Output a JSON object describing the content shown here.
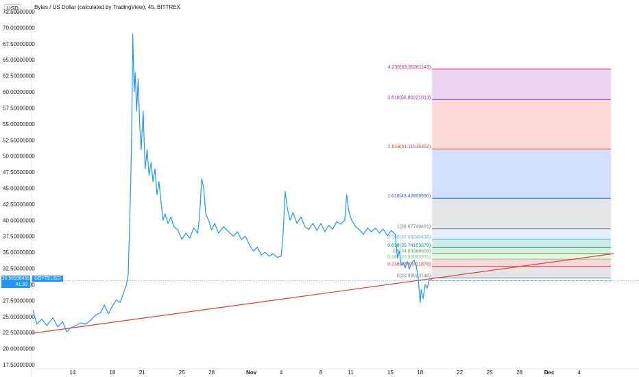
{
  "header": {
    "title": "Bytes / US Dollar (calculated by TradingView), 45, BITTREX",
    "currency": "USD"
  },
  "badges": {
    "last_price": "30.56598455",
    "countdown": "41:30",
    "symbol": "GBYTEUSD"
  },
  "colors": {
    "price_line": "#2196f3",
    "trend_line": "#e53935",
    "badge": "#2196f3"
  },
  "chart_data": {
    "type": "line",
    "title": "Bytes / US Dollar (calculated by TradingView), 45, BITTREX",
    "ylabel": "USD",
    "ylim": [
      17.5,
      72.5
    ],
    "y_ticks": [
      "72.50000000",
      "70.00000000",
      "67.50000000",
      "65.00000000",
      "62.50000000",
      "60.00000000",
      "57.50000000",
      "55.00000000",
      "52.50000000",
      "50.00000000",
      "47.50000000",
      "45.00000000",
      "42.50000000",
      "40.00000000",
      "37.50000000",
      "35.00000000",
      "32.50000000",
      "30.00000000",
      "27.50000000",
      "25.00000000",
      "22.50000000",
      "20.00000000",
      "17.50000000"
    ],
    "x_ticks": [
      {
        "label": "14",
        "day": 14
      },
      {
        "label": "18",
        "day": 18
      },
      {
        "label": "21",
        "day": 21
      },
      {
        "label": "25",
        "day": 25
      },
      {
        "label": "28",
        "day": 28
      },
      {
        "label": "Nov",
        "day": 32
      },
      {
        "label": "4",
        "day": 35
      },
      {
        "label": "8",
        "day": 39
      },
      {
        "label": "11",
        "day": 42
      },
      {
        "label": "15",
        "day": 46
      },
      {
        "label": "18",
        "day": 49
      },
      {
        "label": "22",
        "day": 53
      },
      {
        "label": "25",
        "day": 56
      },
      {
        "label": "28",
        "day": 59
      },
      {
        "label": "Dec",
        "day": 62
      },
      {
        "label": "4",
        "day": 65
      }
    ],
    "series": [
      {
        "points": [
          [
            10,
            26.0
          ],
          [
            10.4,
            23.8
          ],
          [
            10.9,
            24.6
          ],
          [
            11.4,
            23.6
          ],
          [
            12,
            24.8
          ],
          [
            12.5,
            23.4
          ],
          [
            13,
            24.2
          ],
          [
            13.4,
            22.6
          ],
          [
            13.8,
            23.2
          ],
          [
            14.3,
            23.6
          ],
          [
            14.8,
            24.0
          ],
          [
            15.3,
            23.8
          ],
          [
            15.8,
            24.4
          ],
          [
            16.3,
            25.2
          ],
          [
            16.8,
            25.6
          ],
          [
            17.2,
            26.8
          ],
          [
            17.6,
            25.4
          ],
          [
            18,
            26.6
          ],
          [
            18.4,
            27.6
          ],
          [
            18.8,
            27.2
          ],
          [
            19.1,
            28.6
          ],
          [
            19.4,
            29.8
          ],
          [
            19.6,
            31.5
          ],
          [
            19.75,
            40.0
          ],
          [
            19.85,
            46.0
          ],
          [
            19.95,
            54.0
          ],
          [
            20.05,
            69.0
          ],
          [
            20.2,
            60.0
          ],
          [
            20.3,
            63.0
          ],
          [
            20.45,
            57.0
          ],
          [
            20.6,
            62.0
          ],
          [
            20.75,
            55.0
          ],
          [
            20.9,
            51.0
          ],
          [
            21.1,
            57.0
          ],
          [
            21.3,
            48.0
          ],
          [
            21.5,
            51.0
          ],
          [
            21.7,
            47.0
          ],
          [
            21.9,
            49.0
          ],
          [
            22.1,
            46.0
          ],
          [
            22.3,
            48.0
          ],
          [
            22.5,
            44.0
          ],
          [
            22.7,
            46.0
          ],
          [
            22.9,
            43.0
          ],
          [
            23.1,
            40.0
          ],
          [
            23.3,
            41.0
          ],
          [
            23.6,
            39.5
          ],
          [
            23.9,
            40.5
          ],
          [
            24.2,
            39.0
          ],
          [
            24.6,
            38.5
          ],
          [
            25.0,
            37.0
          ],
          [
            25.4,
            38.0
          ],
          [
            25.8,
            37.2
          ],
          [
            26.2,
            38.8
          ],
          [
            26.6,
            38.0
          ],
          [
            26.8,
            41.0
          ],
          [
            27.0,
            46.5
          ],
          [
            27.2,
            45.0
          ],
          [
            27.4,
            41.0
          ],
          [
            27.7,
            40.0
          ],
          [
            28.0,
            38.5
          ],
          [
            28.3,
            39.5
          ],
          [
            28.7,
            38.0
          ],
          [
            29.2,
            39.0
          ],
          [
            29.7,
            38.2
          ],
          [
            30.2,
            37.5
          ],
          [
            30.6,
            38.2
          ],
          [
            31.0,
            37.0
          ],
          [
            31.4,
            37.5
          ],
          [
            31.8,
            36.2
          ],
          [
            32.2,
            35.2
          ],
          [
            32.6,
            35.8
          ],
          [
            33.0,
            34.6
          ],
          [
            33.4,
            35.0
          ],
          [
            33.8,
            34.4
          ],
          [
            34.2,
            34.8
          ],
          [
            34.6,
            34.2
          ],
          [
            35.0,
            34.4
          ],
          [
            35.2,
            38.0
          ],
          [
            35.4,
            44.5
          ],
          [
            35.6,
            42.0
          ],
          [
            35.9,
            40.0
          ],
          [
            36.2,
            41.2
          ],
          [
            36.6,
            39.5
          ],
          [
            37.0,
            40.5
          ],
          [
            37.4,
            39.0
          ],
          [
            37.8,
            38.6
          ],
          [
            38.2,
            39.5
          ],
          [
            38.6,
            38.4
          ],
          [
            39.0,
            39.5
          ],
          [
            39.4,
            38.2
          ],
          [
            39.8,
            39.2
          ],
          [
            40.2,
            38.6
          ],
          [
            40.6,
            39.8
          ],
          [
            41.0,
            39.4
          ],
          [
            41.4,
            40.0
          ],
          [
            41.6,
            44.0
          ],
          [
            41.8,
            41.5
          ],
          [
            42.1,
            40.0
          ],
          [
            42.5,
            39.0
          ],
          [
            42.9,
            38.5
          ],
          [
            43.3,
            37.8
          ],
          [
            43.7,
            38.8
          ],
          [
            44.1,
            38.2
          ],
          [
            44.5,
            38.8
          ],
          [
            44.9,
            38.0
          ],
          [
            45.3,
            38.6
          ],
          [
            45.7,
            37.6
          ],
          [
            46.1,
            38.4
          ],
          [
            46.5,
            37.8
          ],
          [
            46.7,
            34.2
          ],
          [
            46.9,
            35.2
          ],
          [
            47.1,
            33.0
          ],
          [
            47.3,
            33.4
          ],
          [
            47.5,
            32.6
          ],
          [
            47.7,
            33.6
          ],
          [
            47.9,
            32.4
          ],
          [
            48.1,
            33.2
          ],
          [
            48.4,
            33.8
          ],
          [
            48.6,
            33.0
          ],
          [
            48.8,
            31.0
          ],
          [
            49.0,
            27.2
          ],
          [
            49.1,
            29.2
          ],
          [
            49.3,
            27.8
          ],
          [
            49.5,
            30.0
          ],
          [
            49.7,
            29.4
          ],
          [
            49.9,
            30.6
          ],
          [
            50.2,
            30.8
          ]
        ]
      }
    ],
    "trend_line": {
      "from": [
        10,
        22.4
      ],
      "to": [
        68.5,
        34.8
      ]
    },
    "current_price_line": 30.56598455,
    "fibonacci": {
      "x_start": 50.2,
      "x_end": 68.2,
      "levels": [
        {
          "label": "4.236(63.55281143)",
          "value": 63.55281143,
          "color": "#e91e63"
        },
        {
          "label": "3.618(58.80221013)",
          "value": 58.80221013,
          "color": "#9c27b0"
        },
        {
          "label": "2.618(51.11515302)",
          "value": 51.11515302,
          "color": "#f44336"
        },
        {
          "label": "1.618(43.42809590)",
          "value": 43.4280959,
          "color": "#2962ff"
        },
        {
          "label": "1(38.67749461)",
          "value": 38.67749461,
          "color": "#787b86"
        },
        {
          "label": "0.786(37.03246436)",
          "value": 37.03246436,
          "color": "#64b5f6"
        },
        {
          "label": "0.618(35.74103879)",
          "value": 35.74103879,
          "color": "#089981"
        },
        {
          "label": "0.5(34.83386605)",
          "value": 34.83386605,
          "color": "#4caf50"
        },
        {
          "label": "0.382(33.92689331)",
          "value": 33.92689331,
          "color": "#81c784"
        },
        {
          "label": "0.236(32.80421878)",
          "value": 32.80421878,
          "color": "#f23645"
        },
        {
          "label": "0(30.99043748)",
          "value": 30.99043748,
          "color": "#787b86"
        }
      ]
    }
  }
}
